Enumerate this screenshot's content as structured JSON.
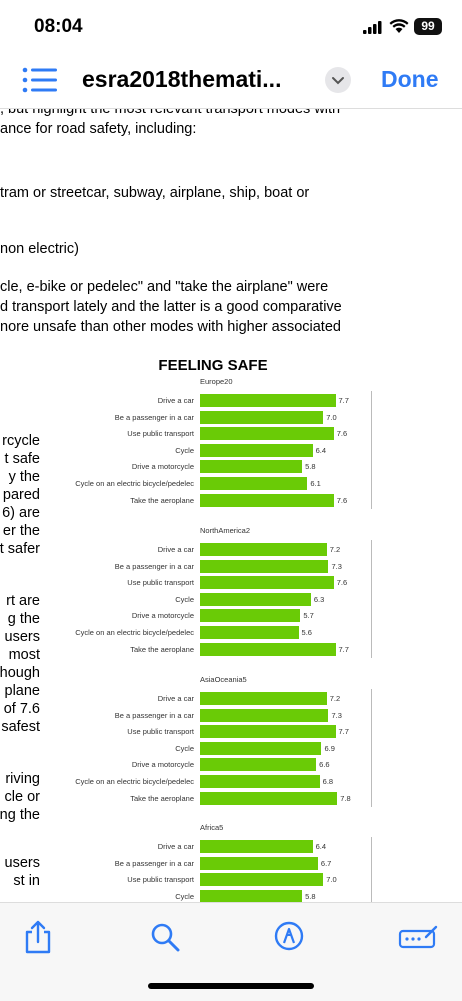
{
  "status": {
    "time": "08:04",
    "battery": "99"
  },
  "nav": {
    "title": "esra2018themati...",
    "done_label": "Done"
  },
  "doc": {
    "lines": [
      ", but highlight the most relevant transport modes with",
      "ance for road safety, including:",
      "tram or streetcar, subway, airplane, ship, boat or",
      "non electric)",
      "cle, e-bike or pedelec\" and \"take the airplane\" were",
      "d transport lately and the latter is a good comparative",
      "nore unsafe than other modes with higher associated"
    ],
    "left_fragments": [
      "rcycle",
      "t safe",
      "y the",
      "pared",
      "6) are",
      "er the",
      "t safer",
      "rt are",
      "g the",
      "users",
      "most",
      "hough",
      "plane",
      "of 7.6",
      "safest",
      "riving",
      "cle or",
      "ng the",
      "users",
      "st in"
    ]
  },
  "chart_data": {
    "type": "bar",
    "title": "FEELING SAFE",
    "categories": [
      "Drive a car",
      "Be a passenger in a car",
      "Use public transport",
      "Cycle",
      "Drive a motorcycle",
      "Cycle on an electric bicycle/pedelec",
      "Take the aeroplane"
    ],
    "xlim": [
      0,
      10
    ],
    "groups": [
      {
        "name": "Europe20",
        "values": [
          7.7,
          7.0,
          7.6,
          6.4,
          5.8,
          6.1,
          7.6
        ],
        "labels": [
          "7.7",
          "7.0",
          "7.6",
          "6.4",
          "5.8",
          "6.1",
          "7.6"
        ]
      },
      {
        "name": "NorthAmerica2",
        "values": [
          7.2,
          7.3,
          7.6,
          6.3,
          5.7,
          5.6,
          7.7
        ],
        "labels": [
          "7.2",
          "7.3",
          "7.6",
          "6.3",
          "5.7",
          "5.6",
          "7.7"
        ]
      },
      {
        "name": "AsiaOceania5",
        "values": [
          7.2,
          7.3,
          7.7,
          6.9,
          6.6,
          6.8,
          7.8
        ],
        "labels": [
          "7.2",
          "7.3",
          "7.7",
          "6.9",
          "6.6",
          "6.8",
          "7.8"
        ]
      },
      {
        "name": "Africa5",
        "values": [
          6.4,
          6.7,
          7.0,
          5.8
        ],
        "labels": [
          "6.4",
          "6.7",
          "7.0",
          "5.8"
        ]
      }
    ],
    "colors": {
      "bar": "#6acb06"
    }
  },
  "toolbar": {
    "icons": [
      "share-icon",
      "search-icon",
      "markup-icon",
      "form-icon"
    ]
  },
  "colors": {
    "accent": "#2f7bf5"
  }
}
